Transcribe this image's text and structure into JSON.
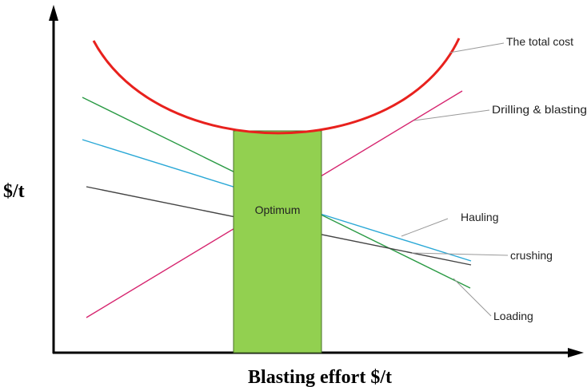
{
  "y_axis_label": "$/t",
  "x_axis_label": "Blasting effort $/t",
  "optimum_label": "Optimum",
  "curves": {
    "total_cost": "The total cost",
    "drilling_blasting": "Drilling & blasting",
    "hauling": "Hauling",
    "crushing": "crushing",
    "loading": "Loading"
  },
  "colors": {
    "total_cost": "#e8211d",
    "drilling_blasting": "#d6256f",
    "hauling": "#2aa8d6",
    "crushing": "#444444",
    "loading": "#2a9a44",
    "optimum_fill": "#92d050",
    "optimum_stroke": "#4a6f2a",
    "axis": "#000000",
    "leader": "#999999"
  }
}
